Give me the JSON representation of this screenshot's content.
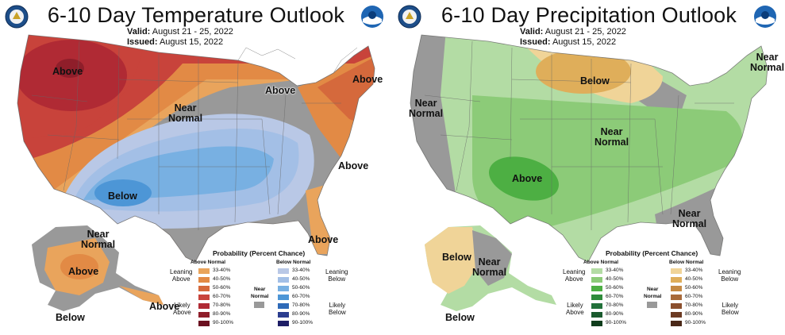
{
  "temperature": {
    "title": "6-10 Day Temperature Outlook",
    "valid_label": "Valid:",
    "valid_dates": "August 21 - 25, 2022",
    "issued_label": "Issued:",
    "issued_date": "August 15, 2022",
    "labels": {
      "above_nw": "Above",
      "above_ne": "Above",
      "above_greatlakes": "Above",
      "above_east": "Above",
      "above_florida": "Above",
      "above_ak_south": "Above",
      "near_normal_line1": "Near",
      "near_normal_line2": "Normal",
      "below": "Below",
      "ak_near_line1": "Near",
      "ak_near_line2": "Normal",
      "ak_below": "Below"
    },
    "legend": {
      "title": "Probability (Percent Chance)",
      "above_head": "Above Normal",
      "below_head": "Below Normal",
      "above_rows": [
        "33-40%",
        "40-50%",
        "50-60%",
        "60-70%",
        "70-80%",
        "80-90%",
        "90-100%"
      ],
      "below_rows": [
        "33-40%",
        "40-50%",
        "50-60%",
        "60-70%",
        "70-80%",
        "80-90%",
        "90-100%"
      ],
      "above_colors": [
        "#e9a45c",
        "#e28a45",
        "#d5693c",
        "#c8433b",
        "#b02a34",
        "#8f1e2a",
        "#6b1020"
      ],
      "below_colors": [
        "#b9c8e6",
        "#a3bfe6",
        "#78b0e2",
        "#4d96d6",
        "#2e6ab8",
        "#2b3d8f",
        "#1e1e66"
      ],
      "leaning_above": [
        "Leaning",
        "Above"
      ],
      "likely_above": [
        "Likely",
        "Above"
      ],
      "leaning_below": [
        "Leaning",
        "Below"
      ],
      "likely_below": [
        "Likely",
        "Below"
      ],
      "near_normal": [
        "Near",
        "Normal"
      ],
      "near_normal_color": "#999999"
    }
  },
  "precipitation": {
    "title": "6-10 Day Precipitation Outlook",
    "valid_label": "Valid:",
    "valid_dates": "August 21 - 25, 2022",
    "issued_label": "Issued:",
    "issued_date": "August 15, 2022",
    "labels": {
      "near_normal_west_1": "Near",
      "near_normal_west_2": "Normal",
      "near_normal_ne_1": "Near",
      "near_normal_ne_2": "Normal",
      "near_normal_mid_1": "Near",
      "near_normal_mid_2": "Normal",
      "near_normal_se_1": "Near",
      "near_normal_se_2": "Normal",
      "below_north": "Below",
      "above_sw": "Above",
      "ak_below_1": "Below",
      "ak_below_2": "Below",
      "ak_near_1": "Near",
      "ak_near_2": "Normal"
    },
    "legend": {
      "title": "Probability (Percent Chance)",
      "above_head": "Above Normal",
      "below_head": "Below Normal",
      "above_rows": [
        "33-40%",
        "40-50%",
        "50-60%",
        "60-70%",
        "70-80%",
        "80-90%",
        "90-100%"
      ],
      "below_rows": [
        "33-40%",
        "40-50%",
        "50-60%",
        "60-70%",
        "70-80%",
        "80-90%",
        "90-100%"
      ],
      "above_colors": [
        "#b3dca4",
        "#8ccb78",
        "#4daf43",
        "#2e8b3a",
        "#22713a",
        "#1a5a2e",
        "#0f3d1c"
      ],
      "below_colors": [
        "#f0d498",
        "#dfae5a",
        "#c58a44",
        "#a86a3a",
        "#8b4f2d",
        "#6b3a22",
        "#4a2818"
      ],
      "leaning_above": [
        "Leaning",
        "Above"
      ],
      "likely_above": [
        "Likely",
        "Above"
      ],
      "leaning_below": [
        "Leaning",
        "Below"
      ],
      "likely_below": [
        "Likely",
        "Below"
      ],
      "near_normal": [
        "Near",
        "Normal"
      ],
      "near_normal_color": "#999999"
    }
  },
  "colors": {
    "near_normal_gray": "#999999",
    "state_line": "#666666",
    "ocean": "#ffffff"
  }
}
